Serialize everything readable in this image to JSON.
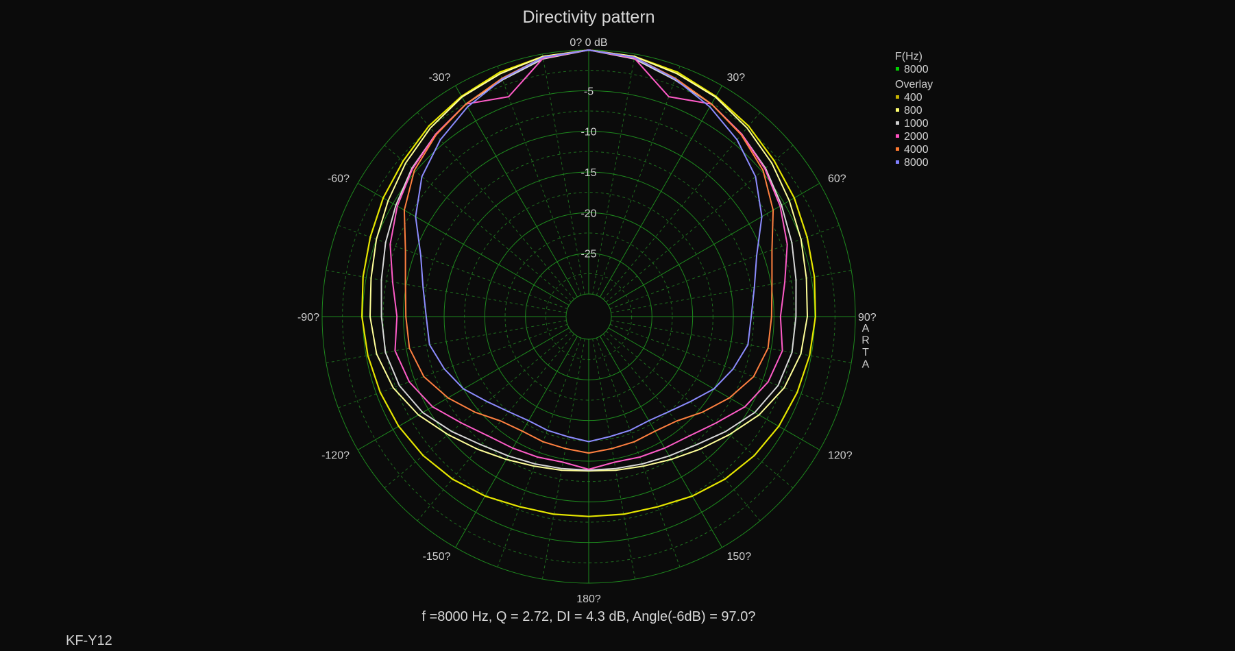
{
  "chart_data": {
    "type": "polar",
    "title": "Directivity pattern",
    "r_labels": [
      "-5",
      "-10",
      "-15",
      "-20",
      "-25"
    ],
    "rlim_db": [
      -30,
      0
    ],
    "r_tick_values": [
      -5,
      -10,
      -15,
      -20,
      -25
    ],
    "top_label": "0? 0 dB",
    "angle_labels": [
      {
        "deg": 30,
        "text": "30?"
      },
      {
        "deg": 60,
        "text": "60?"
      },
      {
        "deg": 90,
        "text": "90?"
      },
      {
        "deg": 120,
        "text": "120?"
      },
      {
        "deg": 150,
        "text": "150?"
      },
      {
        "deg": 180,
        "text": "180?"
      },
      {
        "deg": -150,
        "text": "-150?"
      },
      {
        "deg": -120,
        "text": "-120?"
      },
      {
        "deg": -90,
        "text": "-90?"
      },
      {
        "deg": -60,
        "text": "-60?"
      },
      {
        "deg": -30,
        "text": "-30?"
      }
    ],
    "side_text": "ARTA",
    "legend": {
      "header": "F(Hz)",
      "current": {
        "name": "8000",
        "color": "#00d000"
      },
      "overlay_header": "Overlay",
      "overlay": [
        {
          "name": "400",
          "color": "#c8b400"
        },
        {
          "name": "800",
          "color": "#ffff70"
        },
        {
          "name": "1000",
          "color": "#d0d0d0"
        },
        {
          "name": "2000",
          "color": "#ff50c0"
        },
        {
          "name": "4000",
          "color": "#ff7a30"
        },
        {
          "name": "8000",
          "color": "#8080ff"
        }
      ]
    },
    "angles_deg": [
      0,
      10,
      20,
      30,
      40,
      50,
      60,
      70,
      80,
      90,
      100,
      110,
      120,
      130,
      140,
      150,
      160,
      170,
      180
    ],
    "series": [
      {
        "name": "400",
        "color": "#e6e600",
        "width": 2.2,
        "values": [
          0,
          -0.3,
          -0.8,
          -1.5,
          -2.2,
          -3.0,
          -3.6,
          -4.2,
          -4.6,
          -4.9,
          -5.2,
          -5.5,
          -5.8,
          -6.2,
          -6.7,
          -7.3,
          -7.9,
          -8.1,
          -8.2
        ]
      },
      {
        "name": "800",
        "color": "#ffff99",
        "width": 2,
        "values": [
          0,
          -0.3,
          -1.0,
          -1.6,
          -2.5,
          -3.4,
          -4.3,
          -5.0,
          -5.6,
          -5.9,
          -6.3,
          -7.2,
          -8.6,
          -10.2,
          -11.5,
          -12.5,
          -13.2,
          -13.6,
          -13.8
        ]
      },
      {
        "name": "1000",
        "color": "#d8d8d8",
        "width": 2,
        "values": [
          0,
          -0.6,
          -1.8,
          -2.6,
          -3.5,
          -4.4,
          -5.4,
          -6.2,
          -6.9,
          -7.3,
          -7.4,
          -8.0,
          -9.2,
          -10.8,
          -12.2,
          -13.0,
          -13.5,
          -13.8,
          -13.9
        ]
      },
      {
        "name": "2000",
        "color": "#ff5cc8",
        "width": 2,
        "values": [
          0,
          -0.5,
          -4.0,
          -2.6,
          -3.5,
          -4.5,
          -5.6,
          -6.8,
          -8.3,
          -9.2,
          -8.6,
          -9.3,
          -10.6,
          -12.4,
          -13.6,
          -14.1,
          -14.4,
          -14.6,
          -14.0
        ]
      },
      {
        "name": "4000",
        "color": "#ff8040",
        "width": 2,
        "values": [
          0,
          -0.4,
          -1.6,
          -2.6,
          -3.6,
          -4.8,
          -6.6,
          -8.8,
          -9.9,
          -10.3,
          -10.4,
          -11.2,
          -12.8,
          -14.5,
          -16.0,
          -16.5,
          -16.4,
          -16.3,
          -16.0
        ]
      },
      {
        "name": "8000",
        "color": "#8c8cff",
        "width": 2,
        "values": [
          0,
          -0.4,
          -1.7,
          -3.0,
          -4.4,
          -6.0,
          -8.2,
          -10.8,
          -12.1,
          -12.8,
          -12.9,
          -13.9,
          -15.0,
          -16.5,
          -17.5,
          -18.0,
          -17.9,
          -17.8,
          -17.4
        ]
      }
    ]
  },
  "footer": {
    "stats": "f =8000 Hz,  Q =  2.72,  DI =   4.3 dB, Angle(-6dB) =  97.0?",
    "brand": "KF-Y12"
  }
}
